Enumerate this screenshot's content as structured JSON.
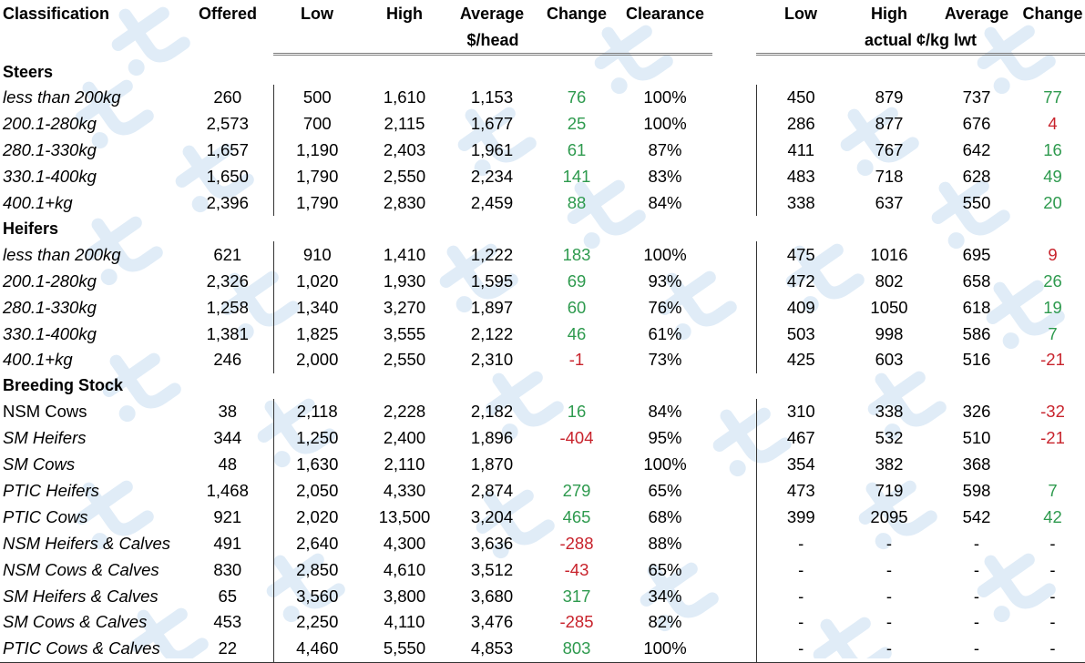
{
  "headers": {
    "classification": "Classification",
    "offered": "Offered",
    "low": "Low",
    "high": "High",
    "average": "Average",
    "change": "Change",
    "clearance": "Clearance",
    "low2": "Low",
    "high2": "High",
    "average2": "Average",
    "change2": "Change",
    "unit_head": "$/head",
    "unit_lwt": "actual ¢/kg lwt"
  },
  "colors": {
    "positive": "#2e9a4e",
    "negative": "#c8232c",
    "watermark": "#dbe9f6"
  },
  "watermark_icon": "tractor-logo-icon",
  "sections": [
    {
      "title": "Steers",
      "rows": [
        {
          "label": "less than 200kg",
          "italic": true,
          "offered": "260",
          "low": "500",
          "high": "1,610",
          "average": "1,153",
          "change": "76",
          "change_sign": "pos",
          "clearance": "100%",
          "low2": "450",
          "high2": "879",
          "average2": "737",
          "change2": "77",
          "change2_sign": "pos"
        },
        {
          "label": "200.1-280kg",
          "italic": true,
          "offered": "2,573",
          "low": "700",
          "high": "2,115",
          "average": "1,677",
          "change": "25",
          "change_sign": "pos",
          "clearance": "100%",
          "low2": "286",
          "high2": "877",
          "average2": "676",
          "change2": "4",
          "change2_sign": "neg"
        },
        {
          "label": "280.1-330kg",
          "italic": true,
          "offered": "1,657",
          "low": "1,190",
          "high": "2,403",
          "average": "1,961",
          "change": "61",
          "change_sign": "pos",
          "clearance": "87%",
          "low2": "411",
          "high2": "767",
          "average2": "642",
          "change2": "16",
          "change2_sign": "pos"
        },
        {
          "label": "330.1-400kg",
          "italic": true,
          "offered": "1,650",
          "low": "1,790",
          "high": "2,550",
          "average": "2,234",
          "change": "141",
          "change_sign": "pos",
          "clearance": "83%",
          "low2": "483",
          "high2": "718",
          "average2": "628",
          "change2": "49",
          "change2_sign": "pos"
        },
        {
          "label": "400.1+kg",
          "italic": true,
          "offered": "2,396",
          "low": "1,790",
          "high": "2,830",
          "average": "2,459",
          "change": "88",
          "change_sign": "pos",
          "clearance": "84%",
          "low2": "338",
          "high2": "637",
          "average2": "550",
          "change2": "20",
          "change2_sign": "pos"
        }
      ]
    },
    {
      "title": "Heifers",
      "rows": [
        {
          "label": "less than 200kg",
          "italic": true,
          "offered": "621",
          "low": "910",
          "high": "1,410",
          "average": "1,222",
          "change": "183",
          "change_sign": "pos",
          "clearance": "100%",
          "low2": "475",
          "high2": "1016",
          "average2": "695",
          "change2": "9",
          "change2_sign": "neg"
        },
        {
          "label": "200.1-280kg",
          "italic": true,
          "offered": "2,326",
          "low": "1,020",
          "high": "1,930",
          "average": "1,595",
          "change": "69",
          "change_sign": "pos",
          "clearance": "93%",
          "low2": "472",
          "high2": "802",
          "average2": "658",
          "change2": "26",
          "change2_sign": "pos"
        },
        {
          "label": "280.1-330kg",
          "italic": true,
          "offered": "1,258",
          "low": "1,340",
          "high": "3,270",
          "average": "1,897",
          "change": "60",
          "change_sign": "pos",
          "clearance": "76%",
          "low2": "409",
          "high2": "1050",
          "average2": "618",
          "change2": "19",
          "change2_sign": "pos"
        },
        {
          "label": "330.1-400kg",
          "italic": true,
          "offered": "1,381",
          "low": "1,825",
          "high": "3,555",
          "average": "2,122",
          "change": "46",
          "change_sign": "pos",
          "clearance": "61%",
          "low2": "503",
          "high2": "998",
          "average2": "586",
          "change2": "7",
          "change2_sign": "pos"
        },
        {
          "label": "400.1+kg",
          "italic": true,
          "offered": "246",
          "low": "2,000",
          "high": "2,550",
          "average": "2,310",
          "change": "-1",
          "change_sign": "neg",
          "clearance": "73%",
          "low2": "425",
          "high2": "603",
          "average2": "516",
          "change2": "-21",
          "change2_sign": "neg"
        }
      ]
    },
    {
      "title": "Breeding Stock",
      "rows": [
        {
          "label": "NSM Cows",
          "italic": false,
          "offered": "38",
          "low": "2,118",
          "high": "2,228",
          "average": "2,182",
          "change": "16",
          "change_sign": "pos",
          "clearance": "84%",
          "low2": "310",
          "high2": "338",
          "average2": "326",
          "change2": "-32",
          "change2_sign": "neg"
        },
        {
          "label": "SM Heifers",
          "italic": true,
          "offered": "344",
          "low": "1,250",
          "high": "2,400",
          "average": "1,896",
          "change": "-404",
          "change_sign": "neg",
          "clearance": "95%",
          "low2": "467",
          "high2": "532",
          "average2": "510",
          "change2": "-21",
          "change2_sign": "neg"
        },
        {
          "label": "SM Cows",
          "italic": true,
          "offered": "48",
          "low": "1,630",
          "high": "2,110",
          "average": "1,870",
          "change": "",
          "change_sign": "pos",
          "clearance": "100%",
          "low2": "354",
          "high2": "382",
          "average2": "368",
          "change2": "",
          "change2_sign": "pos"
        },
        {
          "label": "PTIC Heifers",
          "italic": true,
          "offered": "1,468",
          "low": "2,050",
          "high": "4,330",
          "average": "2,874",
          "change": "279",
          "change_sign": "pos",
          "clearance": "65%",
          "low2": "473",
          "high2": "719",
          "average2": "598",
          "change2": "7",
          "change2_sign": "pos"
        },
        {
          "label": "PTIC Cows",
          "italic": true,
          "offered": "921",
          "low": "2,020",
          "high": "13,500",
          "average": "3,204",
          "change": "465",
          "change_sign": "pos",
          "clearance": "68%",
          "low2": "399",
          "high2": "2095",
          "average2": "542",
          "change2": "42",
          "change2_sign": "pos"
        },
        {
          "label": "NSM Heifers & Calves",
          "italic": true,
          "offered": "491",
          "low": "2,640",
          "high": "4,300",
          "average": "3,636",
          "change": "-288",
          "change_sign": "neg",
          "clearance": "88%",
          "low2": "-",
          "high2": "-",
          "average2": "-",
          "change2": "-",
          "change2_sign": "none"
        },
        {
          "label": "NSM Cows & Calves",
          "italic": true,
          "offered": "830",
          "low": "2,850",
          "high": "4,610",
          "average": "3,512",
          "change": "-43",
          "change_sign": "neg",
          "clearance": "65%",
          "low2": "-",
          "high2": "-",
          "average2": "-",
          "change2": "-",
          "change2_sign": "none"
        },
        {
          "label": "SM Heifers & Calves",
          "italic": true,
          "offered": "65",
          "low": "3,560",
          "high": "3,800",
          "average": "3,680",
          "change": "317",
          "change_sign": "pos",
          "clearance": "34%",
          "low2": "-",
          "high2": "-",
          "average2": "-",
          "change2": "-",
          "change2_sign": "none"
        },
        {
          "label": "SM Cows & Calves",
          "italic": true,
          "offered": "453",
          "low": "2,250",
          "high": "4,110",
          "average": "3,476",
          "change": "-285",
          "change_sign": "neg",
          "clearance": "82%",
          "low2": "-",
          "high2": "-",
          "average2": "-",
          "change2": "-",
          "change2_sign": "none"
        },
        {
          "label": "PTIC Cows & Calves",
          "italic": true,
          "offered": "22",
          "low": "4,460",
          "high": "5,550",
          "average": "4,853",
          "change": "803",
          "change_sign": "pos",
          "clearance": "100%",
          "low2": "-",
          "high2": "-",
          "average2": "-",
          "change2": "-",
          "change2_sign": "none"
        }
      ]
    }
  ]
}
